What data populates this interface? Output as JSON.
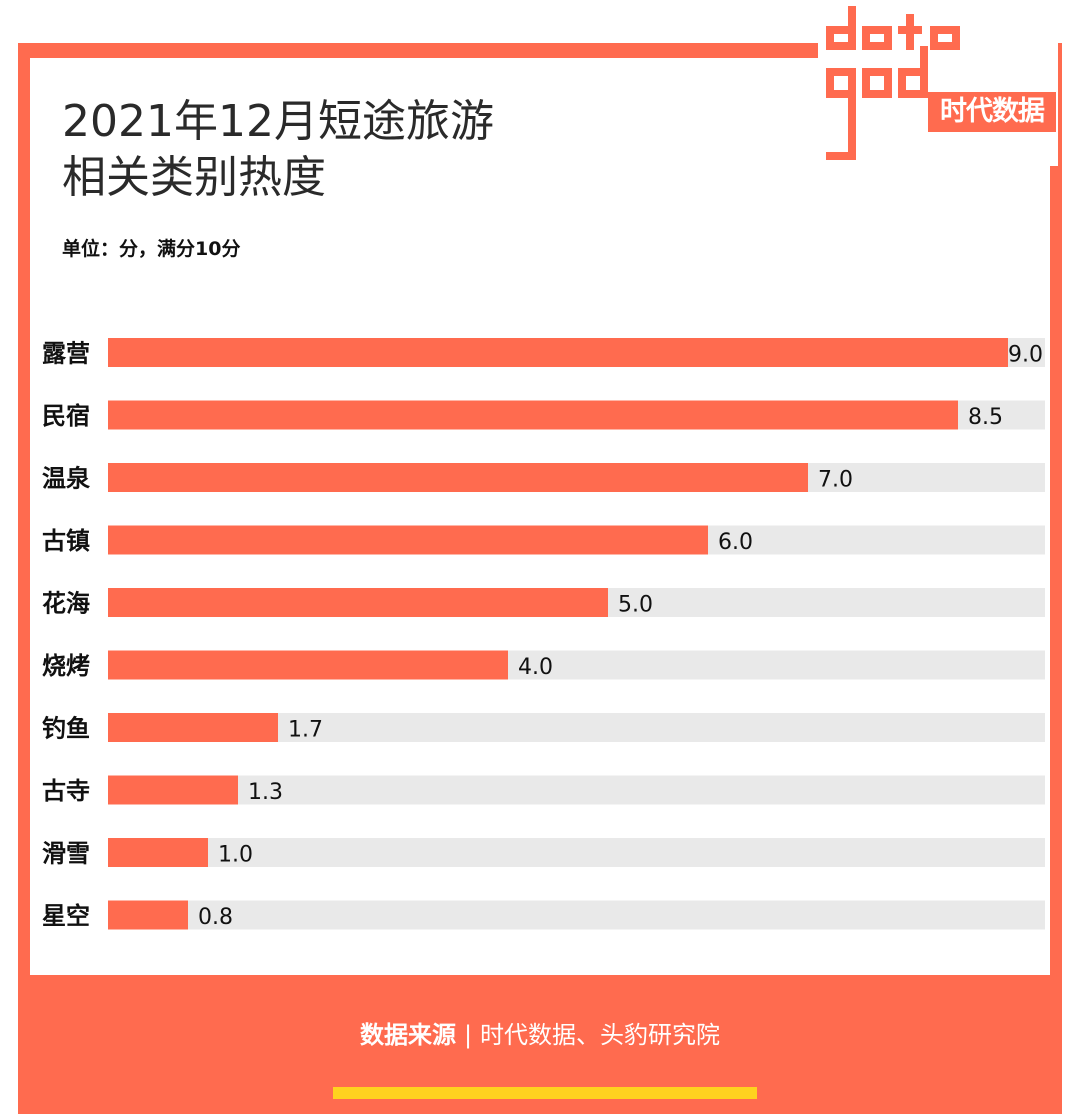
{
  "title": "2021年12月短途旅游\n相关类别热度",
  "unit_note": "单位：分，满分10分",
  "logo": {
    "text": "时代数据"
  },
  "footer": {
    "source_label": "数据来源",
    "source": "时代数据、头豹研究院"
  },
  "colors": {
    "accent": "#ff6b4f",
    "bar_bg": "#e9e9e9",
    "strip": "#ffd21f"
  },
  "chart_data": {
    "type": "bar",
    "orientation": "horizontal",
    "categories": [
      "露营",
      "民宿",
      "温泉",
      "古镇",
      "花海",
      "烧烤",
      "钓鱼",
      "古寺",
      "滑雪",
      "星空"
    ],
    "values": [
      9.0,
      8.5,
      7.0,
      6.0,
      5.0,
      4.0,
      1.7,
      1.3,
      1.0,
      0.8
    ],
    "value_labels": [
      "9.0",
      "8.5",
      "7.0",
      "6.0",
      "5.0",
      "4.0",
      "1.7",
      "1.3",
      "1.0",
      "0.8"
    ],
    "xlim": [
      0,
      10
    ],
    "title": "2021年12月短途旅游相关类别热度",
    "xlabel": "",
    "ylabel": "",
    "grid": false
  }
}
